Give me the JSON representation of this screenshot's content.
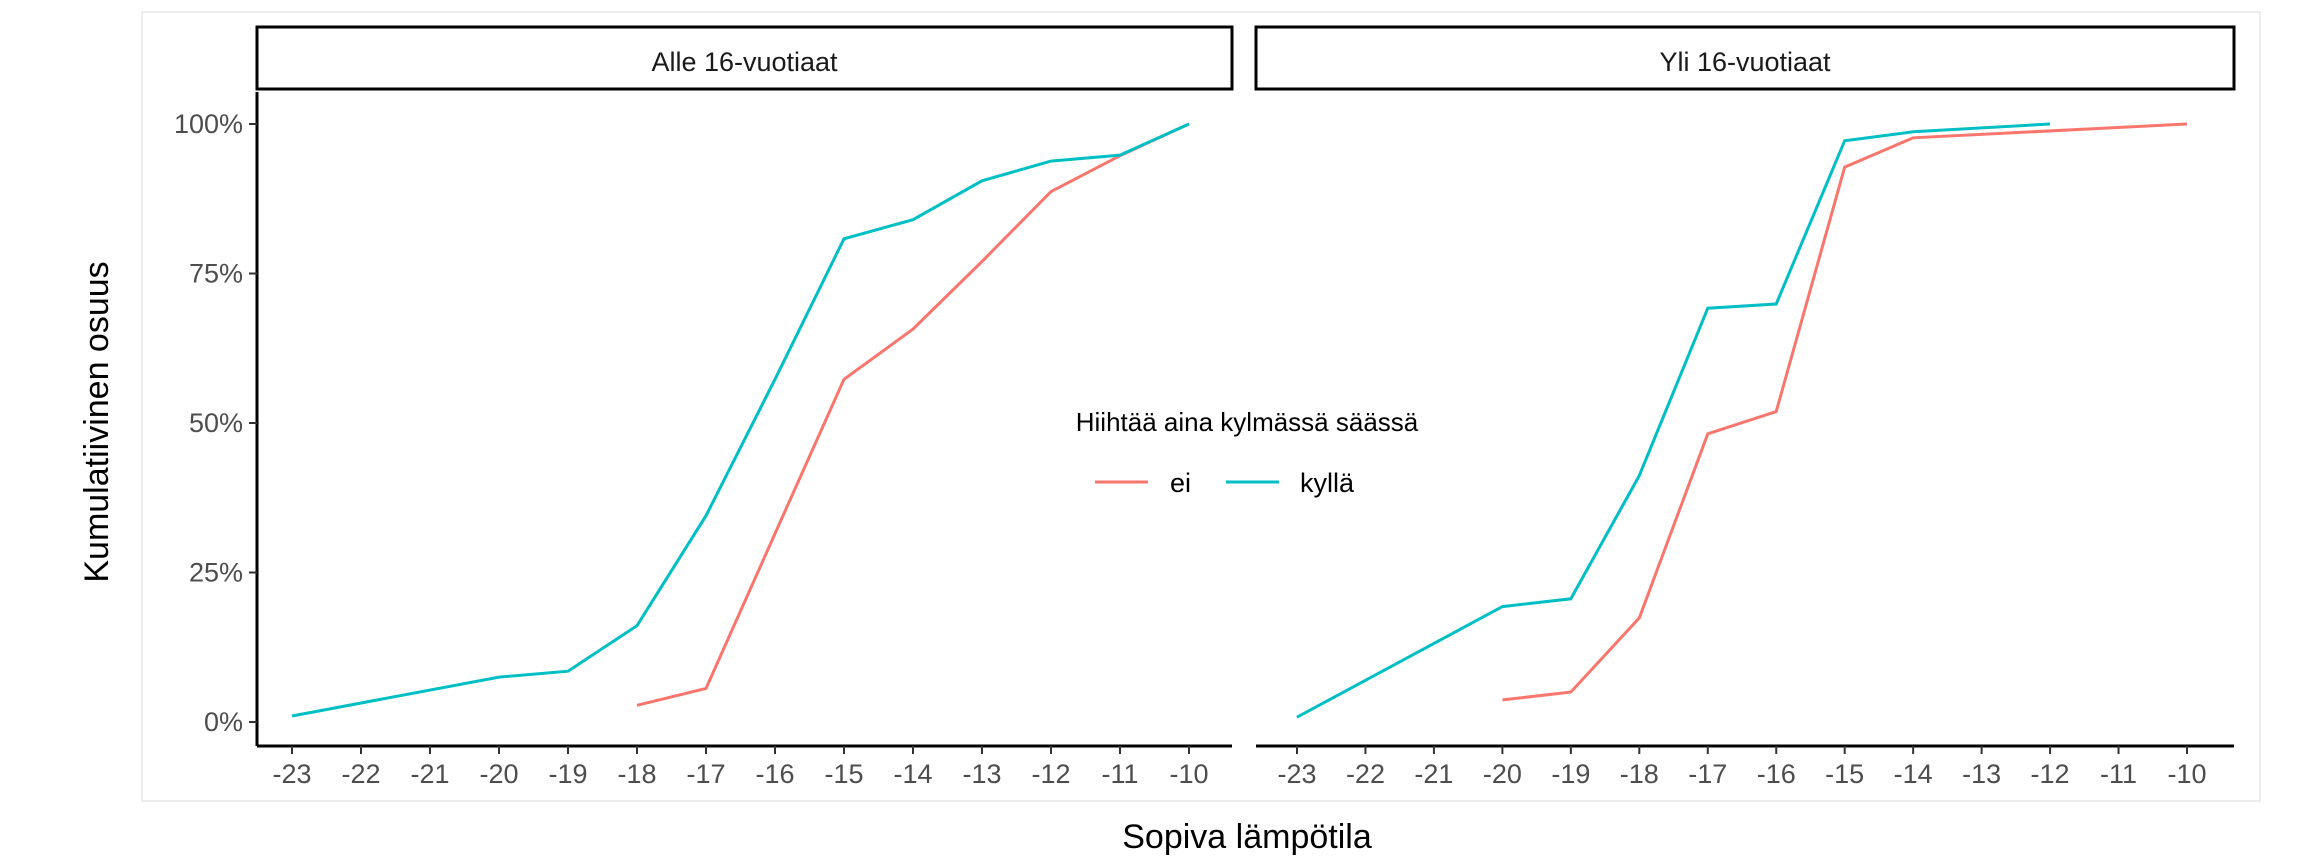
{
  "chart_data": {
    "type": "line",
    "xlabel": "Sopiva lämpötila",
    "ylabel": "Kumulatiivinen osuus",
    "xlim": [
      -23,
      -10
    ],
    "ylim": [
      0,
      100
    ],
    "x_ticks": [
      "-23",
      "-22",
      "-21",
      "-20",
      "-19",
      "-18",
      "-17",
      "-16",
      "-15",
      "-14",
      "-13",
      "-12",
      "-11",
      "-10"
    ],
    "y_ticks": [
      "0%",
      "25%",
      "50%",
      "75%",
      "100%"
    ],
    "y_tick_values": [
      0,
      25,
      50,
      75,
      100
    ],
    "grid": false,
    "legend": {
      "title": "Hiihtää aina kylmässä säässä",
      "placement": "center",
      "entries": [
        {
          "name": "ei",
          "color": "#F8766D"
        },
        {
          "name": "kyllä",
          "color": "#00BFC4"
        }
      ]
    },
    "panels": [
      {
        "title": "Alle 16-vuotiaat",
        "series": [
          {
            "name": "ei",
            "color": "#F8766D",
            "x": [
              -18,
              -17,
              -16,
              -15,
              -14,
              -13,
              -12,
              -11,
              -10
            ],
            "y": [
              2.8,
              5.6,
              31.5,
              57.3,
              65.7,
              77.0,
              88.7,
              94.7,
              100
            ]
          },
          {
            "name": "kyllä",
            "color": "#00BFC4",
            "x": [
              -23,
              -20,
              -19,
              -18,
              -17,
              -16,
              -15,
              -14,
              -13,
              -12,
              -11,
              -10
            ],
            "y": [
              1.0,
              7.5,
              8.5,
              16.1,
              34.5,
              57.3,
              80.8,
              84.0,
              90.5,
              93.8,
              94.8,
              100
            ]
          }
        ]
      },
      {
        "title": "Yli 16-vuotiaat",
        "series": [
          {
            "name": "ei",
            "color": "#F8766D",
            "x": [
              -20,
              -19,
              -18,
              -17,
              -16,
              -15,
              -14,
              -10
            ],
            "y": [
              3.7,
              5.0,
              17.4,
              48.2,
              51.9,
              92.8,
              97.7,
              100
            ]
          },
          {
            "name": "kyllä",
            "color": "#00BFC4",
            "x": [
              -23,
              -20,
              -19,
              -18,
              -17,
              -16,
              -15,
              -14,
              -12
            ],
            "y": [
              0.8,
              19.3,
              20.6,
              41.2,
              69.2,
              69.9,
              97.2,
              98.7,
              100
            ]
          }
        ]
      }
    ]
  }
}
